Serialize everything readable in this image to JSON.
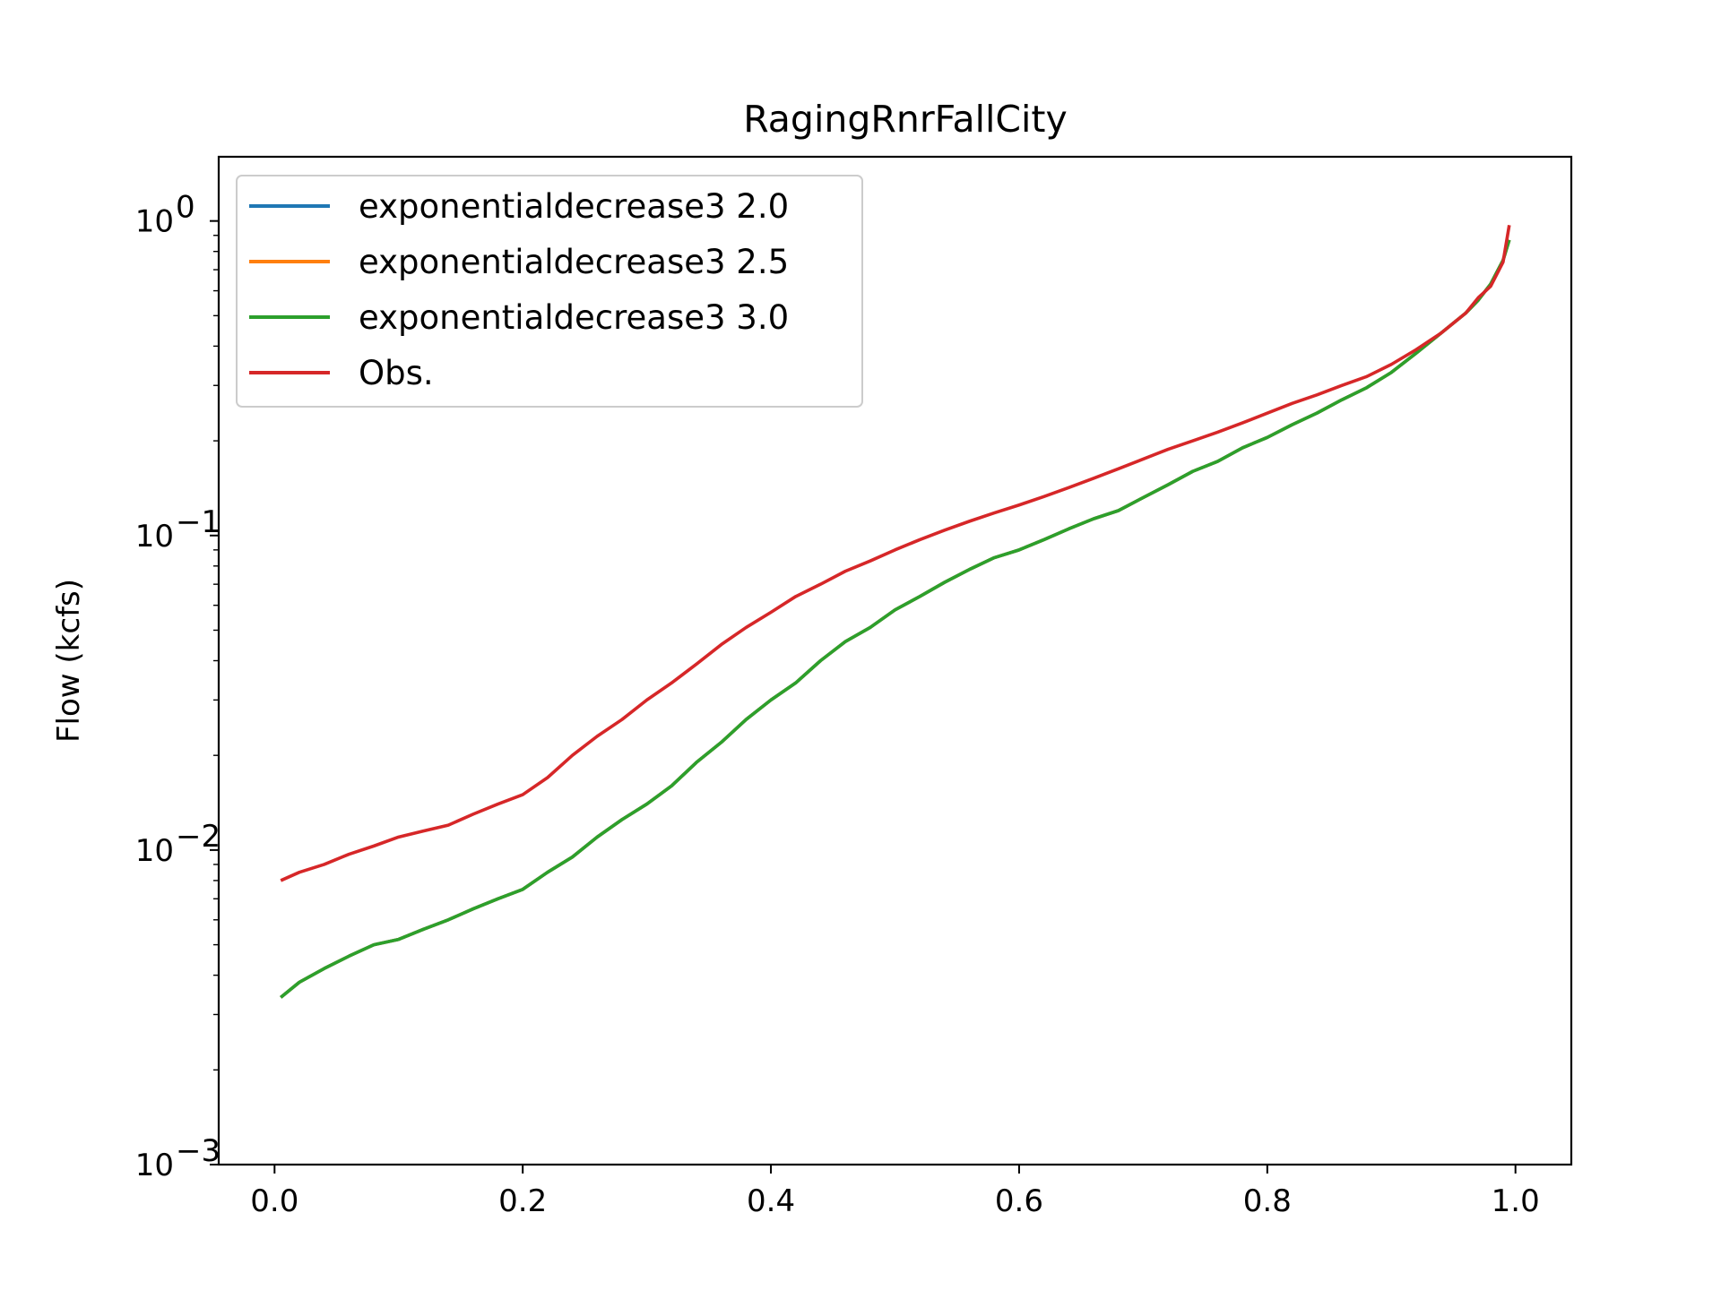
{
  "chart_data": {
    "type": "line",
    "title": "RagingRnrFallCity",
    "xlabel": "",
    "ylabel": "Flow (kcfs)",
    "yscale": "log",
    "xlim": [
      -0.045,
      1.045
    ],
    "ylim": [
      0.001,
      1.6
    ],
    "x_ticks": [
      0.0,
      0.2,
      0.4,
      0.6,
      0.8,
      1.0
    ],
    "x_tick_labels": [
      "0.0",
      "0.2",
      "0.4",
      "0.6",
      "0.8",
      "1.0"
    ],
    "y_ticks": [
      {
        "value": 1,
        "base": "10",
        "exp": "0"
      },
      {
        "value": 0.1,
        "base": "10",
        "exp": "−1"
      },
      {
        "value": 0.01,
        "base": "10",
        "exp": "−2"
      },
      {
        "value": 0.001,
        "base": "10",
        "exp": "−3"
      }
    ],
    "legend_position": "upper-left",
    "x": [
      0.005,
      0.02,
      0.04,
      0.06,
      0.08,
      0.1,
      0.12,
      0.14,
      0.16,
      0.18,
      0.2,
      0.22,
      0.24,
      0.26,
      0.28,
      0.3,
      0.32,
      0.34,
      0.36,
      0.38,
      0.4,
      0.42,
      0.44,
      0.46,
      0.48,
      0.5,
      0.52,
      0.54,
      0.56,
      0.58,
      0.6,
      0.62,
      0.64,
      0.66,
      0.68,
      0.7,
      0.72,
      0.74,
      0.76,
      0.78,
      0.8,
      0.82,
      0.84,
      0.86,
      0.88,
      0.9,
      0.92,
      0.94,
      0.96,
      0.97,
      0.98,
      0.99,
      0.995
    ],
    "series": [
      {
        "name": "exponentialdecrease3 2.0",
        "color": "#1f77b4",
        "values": [
          0.0034,
          0.0038,
          0.0042,
          0.0046,
          0.005,
          0.0052,
          0.0056,
          0.006,
          0.0065,
          0.007,
          0.0075,
          0.0085,
          0.0095,
          0.011,
          0.0125,
          0.014,
          0.016,
          0.019,
          0.022,
          0.026,
          0.03,
          0.034,
          0.04,
          0.046,
          0.051,
          0.058,
          0.064,
          0.071,
          0.078,
          0.085,
          0.09,
          0.097,
          0.105,
          0.113,
          0.12,
          0.132,
          0.145,
          0.16,
          0.172,
          0.19,
          0.205,
          0.225,
          0.245,
          0.27,
          0.295,
          0.33,
          0.38,
          0.44,
          0.51,
          0.56,
          0.63,
          0.75,
          0.87
        ]
      },
      {
        "name": "exponentialdecrease3 2.5",
        "color": "#ff7f0e",
        "values": [
          0.0034,
          0.0038,
          0.0042,
          0.0046,
          0.005,
          0.0052,
          0.0056,
          0.006,
          0.0065,
          0.007,
          0.0075,
          0.0085,
          0.0095,
          0.011,
          0.0125,
          0.014,
          0.016,
          0.019,
          0.022,
          0.026,
          0.03,
          0.034,
          0.04,
          0.046,
          0.051,
          0.058,
          0.064,
          0.071,
          0.078,
          0.085,
          0.09,
          0.097,
          0.105,
          0.113,
          0.12,
          0.132,
          0.145,
          0.16,
          0.172,
          0.19,
          0.205,
          0.225,
          0.245,
          0.27,
          0.295,
          0.33,
          0.38,
          0.44,
          0.51,
          0.56,
          0.63,
          0.75,
          0.87
        ]
      },
      {
        "name": "exponentialdecrease3 3.0",
        "color": "#2ca02c",
        "values": [
          0.0034,
          0.0038,
          0.0042,
          0.0046,
          0.005,
          0.0052,
          0.0056,
          0.006,
          0.0065,
          0.007,
          0.0075,
          0.0085,
          0.0095,
          0.011,
          0.0125,
          0.014,
          0.016,
          0.019,
          0.022,
          0.026,
          0.03,
          0.034,
          0.04,
          0.046,
          0.051,
          0.058,
          0.064,
          0.071,
          0.078,
          0.085,
          0.09,
          0.097,
          0.105,
          0.113,
          0.12,
          0.132,
          0.145,
          0.16,
          0.172,
          0.19,
          0.205,
          0.225,
          0.245,
          0.27,
          0.295,
          0.33,
          0.38,
          0.44,
          0.51,
          0.56,
          0.63,
          0.75,
          0.87
        ]
      },
      {
        "name": "Obs.",
        "color": "#d62728",
        "values": [
          0.008,
          0.0085,
          0.009,
          0.0097,
          0.0103,
          0.011,
          0.0115,
          0.012,
          0.013,
          0.014,
          0.015,
          0.017,
          0.02,
          0.023,
          0.026,
          0.03,
          0.034,
          0.039,
          0.045,
          0.051,
          0.057,
          0.064,
          0.07,
          0.077,
          0.083,
          0.09,
          0.097,
          0.104,
          0.111,
          0.118,
          0.125,
          0.133,
          0.142,
          0.152,
          0.163,
          0.175,
          0.188,
          0.2,
          0.213,
          0.228,
          0.245,
          0.263,
          0.28,
          0.3,
          0.32,
          0.35,
          0.39,
          0.44,
          0.51,
          0.57,
          0.62,
          0.74,
          0.97
        ]
      }
    ]
  }
}
